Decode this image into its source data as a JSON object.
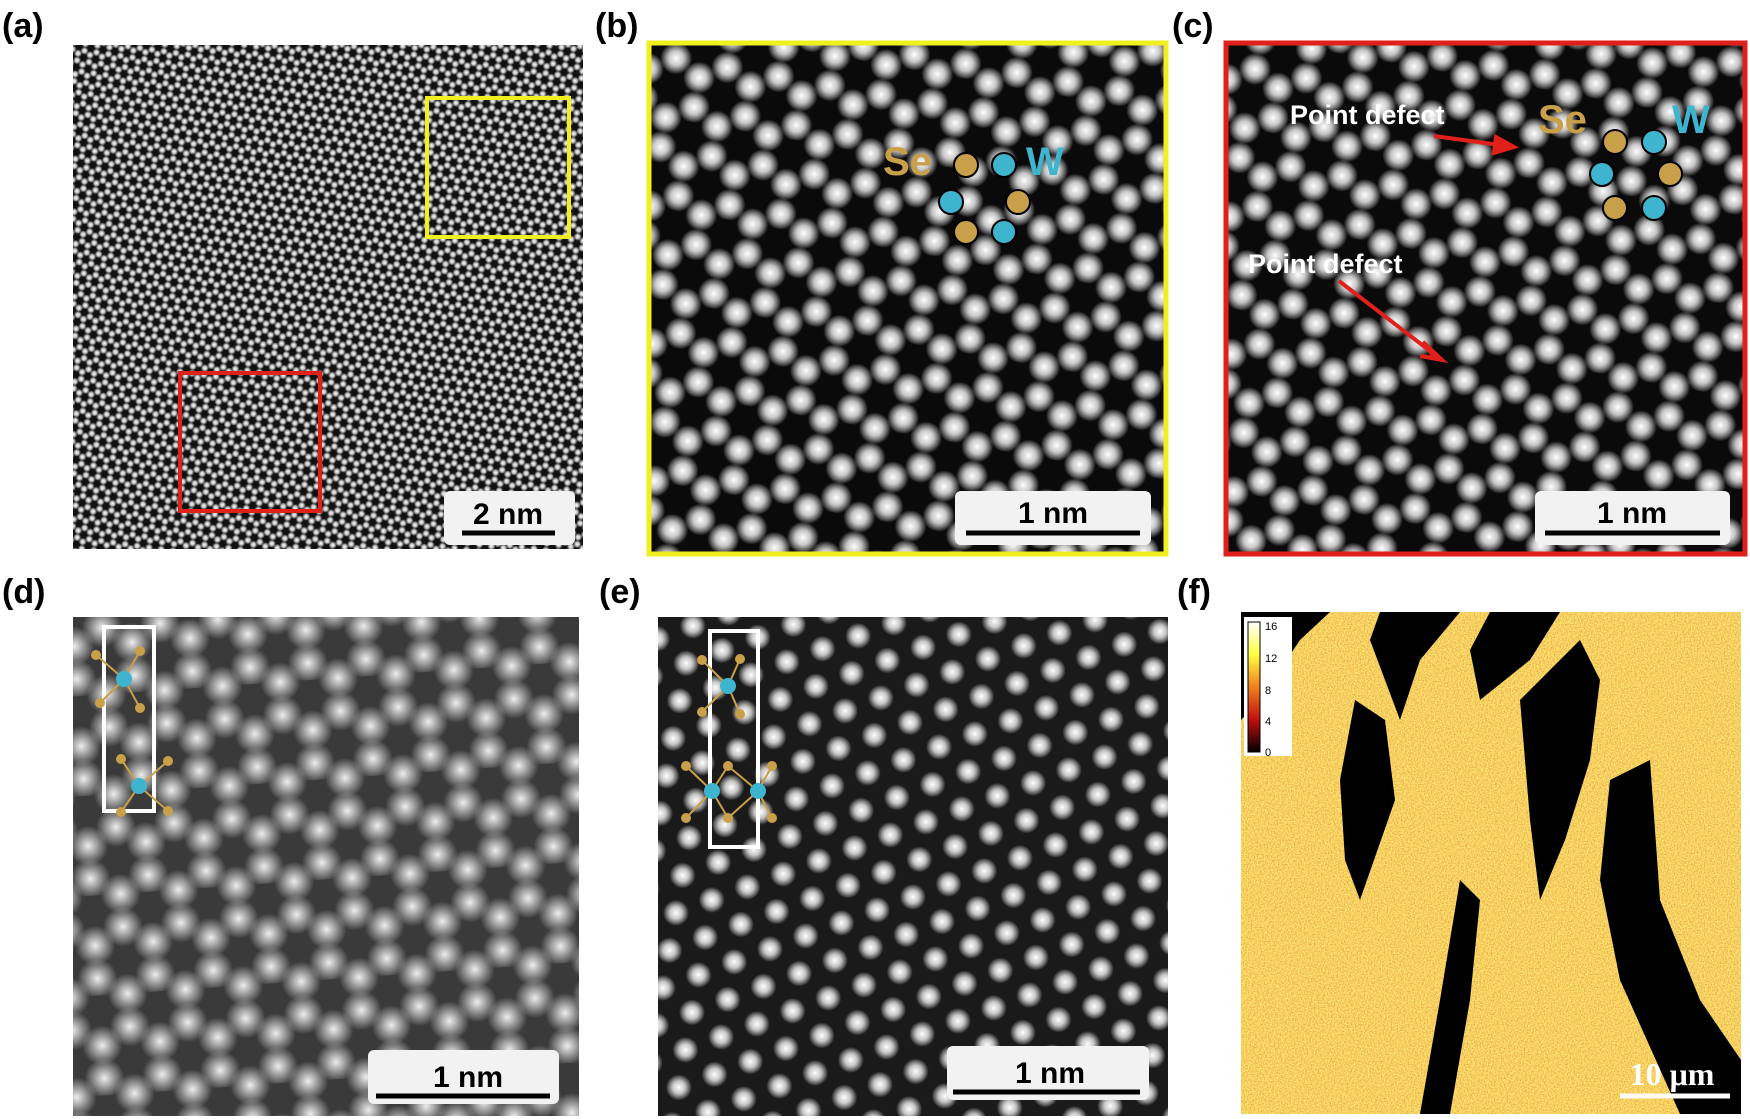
{
  "panels": [
    {
      "label": "(a)",
      "scale_bar": "2 nm"
    },
    {
      "label": "(b)",
      "scale_bar": "1 nm",
      "annotations": [
        "Se",
        "W"
      ]
    },
    {
      "label": "(c)",
      "scale_bar": "1 nm",
      "annotations": [
        "Point defect",
        "Point defect",
        "Se",
        "W"
      ]
    },
    {
      "label": "(d)",
      "scale_bar": "1 nm"
    },
    {
      "label": "(e)",
      "scale_bar": "1 nm"
    },
    {
      "label": "(f)",
      "scale_bar": "10 μm",
      "colorbar_ticks": [
        16,
        12,
        8,
        4,
        0
      ]
    }
  ]
}
